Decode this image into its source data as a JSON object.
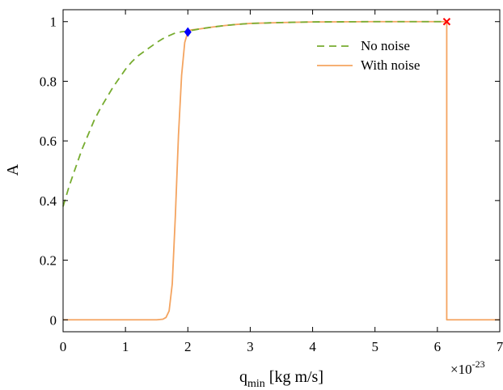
{
  "chart_data": {
    "type": "line",
    "xlabel": {
      "base": "q",
      "sub": "min",
      "rest": " [kg m/s]"
    },
    "ylabel": "A",
    "x_multiplier": {
      "base": "×10",
      "exp": "-23"
    },
    "xlim": [
      0,
      7
    ],
    "ylim": [
      0,
      1
    ],
    "x_ticks": [
      0,
      1,
      2,
      3,
      4,
      5,
      6,
      7
    ],
    "y_ticks": [
      0,
      0.2,
      0.4,
      0.6,
      0.8,
      1
    ],
    "x_tick_labels": [
      "0",
      "1",
      "2",
      "3",
      "4",
      "5",
      "6",
      "7"
    ],
    "y_tick_labels": [
      "0",
      "0.2",
      "0.4",
      "0.6",
      "0.8",
      "1"
    ],
    "grid": false,
    "legend_position": "top-right",
    "series": [
      {
        "name": "No noise",
        "style": "dashed",
        "color": "#77AC30",
        "x": [
          0,
          0.1,
          0.2,
          0.3,
          0.4,
          0.5,
          0.6,
          0.7,
          0.8,
          0.9,
          1.0,
          1.1,
          1.2,
          1.3,
          1.4,
          1.5,
          1.6,
          1.7,
          1.8,
          1.9,
          2.0,
          2.2,
          2.4,
          2.6,
          2.8,
          3.0,
          3.5,
          4.0,
          5.0,
          6.15
        ],
        "y": [
          0.38,
          0.45,
          0.51,
          0.57,
          0.62,
          0.67,
          0.71,
          0.745,
          0.78,
          0.81,
          0.84,
          0.865,
          0.885,
          0.9,
          0.915,
          0.93,
          0.943,
          0.953,
          0.962,
          0.966,
          0.968,
          0.976,
          0.982,
          0.987,
          0.991,
          0.994,
          0.997,
          0.999,
          1.0,
          1.0
        ]
      },
      {
        "name": "With noise",
        "style": "solid",
        "color": "#F4A460",
        "x": [
          0,
          1.5,
          1.6,
          1.65,
          1.7,
          1.75,
          1.8,
          1.85,
          1.9,
          1.95,
          2.0,
          2.05,
          2.2,
          2.4,
          2.6,
          2.8,
          3.0,
          3.5,
          4.0,
          5.0,
          6.15,
          6.15,
          7.0
        ],
        "y": [
          0,
          0,
          0.002,
          0.008,
          0.03,
          0.12,
          0.35,
          0.62,
          0.82,
          0.93,
          0.965,
          0.972,
          0.976,
          0.982,
          0.987,
          0.991,
          0.994,
          0.997,
          0.999,
          1.0,
          1.0,
          0,
          0
        ]
      }
    ],
    "markers": [
      {
        "shape": "diamond",
        "color": "#0000FF",
        "x": 2.0,
        "y": 0.965
      },
      {
        "shape": "x",
        "color": "#FF0000",
        "x": 6.15,
        "y": 1.0
      }
    ]
  }
}
